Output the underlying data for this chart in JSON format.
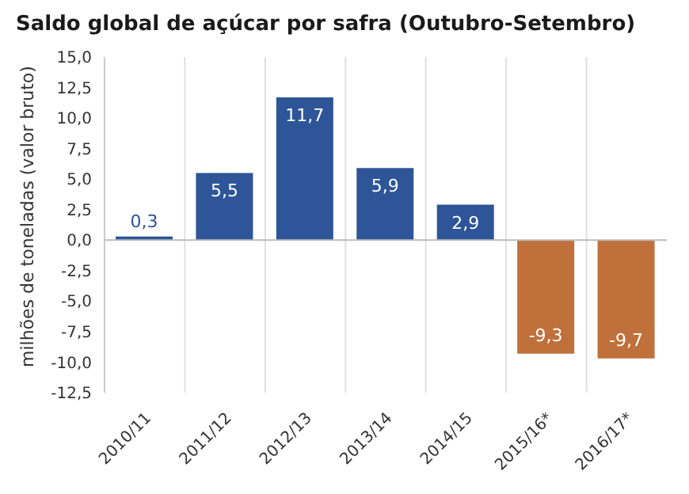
{
  "chart_data": {
    "type": "bar",
    "title": "Saldo global de açúcar por safra (Outubro-Setembro)",
    "ylabel": "milhões de toneladas (valor bruto)",
    "categories": [
      "2010/11",
      "2011/12",
      "2012/13",
      "2013/14",
      "2014/15",
      "2015/16*",
      "2016/17*"
    ],
    "values": [
      0.3,
      5.5,
      11.7,
      5.9,
      2.9,
      -9.3,
      -9.7
    ],
    "colors": [
      "#2e5597",
      "#2e5597",
      "#2e5597",
      "#2e5597",
      "#2e5597",
      "#c0703a",
      "#c0703a"
    ],
    "ylim": [
      -12.5,
      15
    ],
    "yticks": [
      {
        "value": -12.5,
        "label": "-12,5"
      },
      {
        "value": -10,
        "label": "-10,0"
      },
      {
        "value": -7.5,
        "label": "-7,5"
      },
      {
        "value": -5,
        "label": "-5,0"
      },
      {
        "value": -2.5,
        "label": "-2,5"
      },
      {
        "value": 0,
        "label": "0,0"
      },
      {
        "value": 2.5,
        "label": "2,5"
      },
      {
        "value": 5,
        "label": "5,0"
      },
      {
        "value": 7.5,
        "label": "7,5"
      },
      {
        "value": 10,
        "label": "10,0"
      },
      {
        "value": 12.5,
        "label": "12,5"
      },
      {
        "value": 15,
        "label": "15,0"
      }
    ],
    "value_labels": [
      "0,3",
      "5,5",
      "11,7",
      "5,9",
      "2,9",
      "-9,3",
      "-9,7"
    ],
    "grid": "x"
  }
}
